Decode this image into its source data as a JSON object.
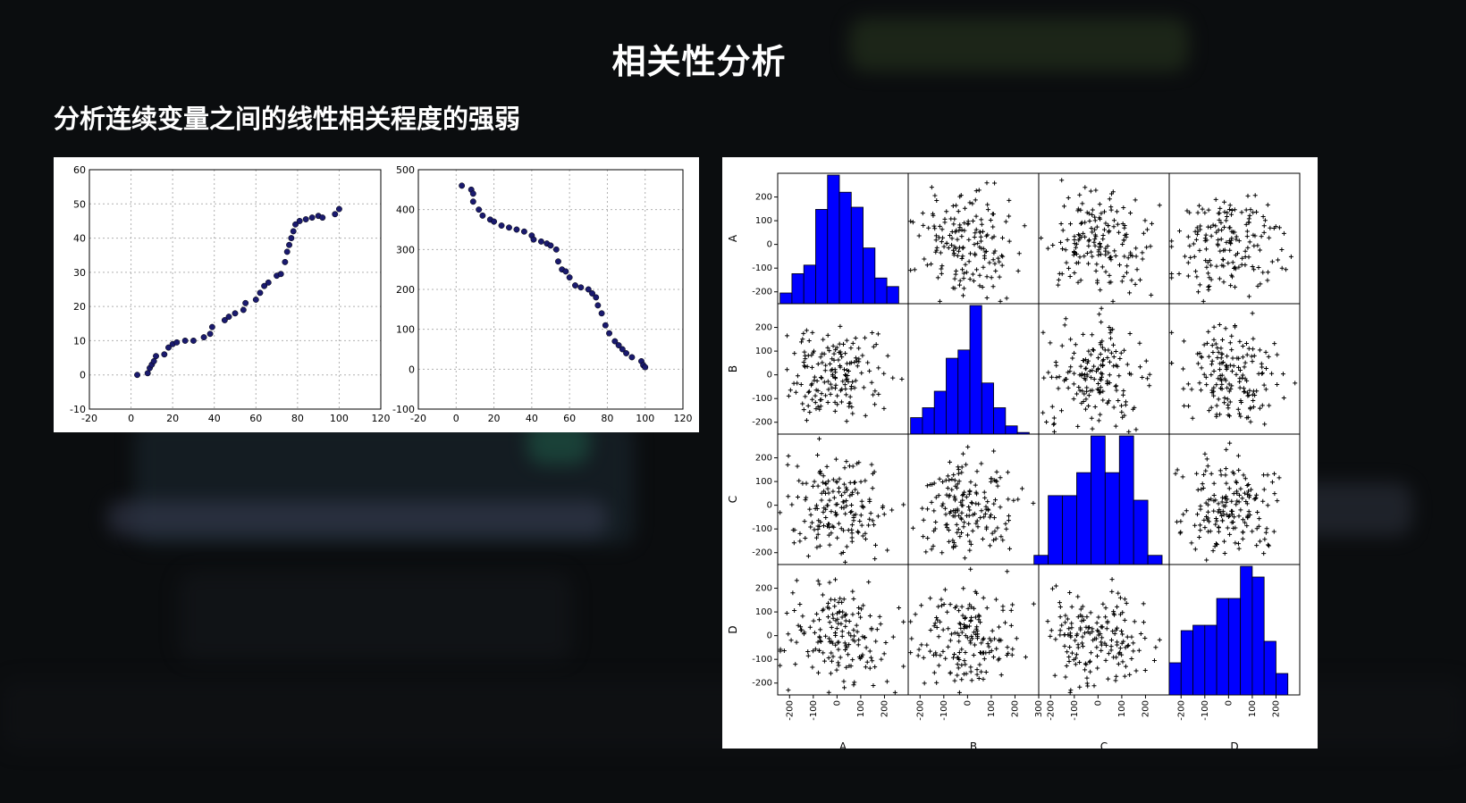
{
  "slide": {
    "title": "相关性分析",
    "subtitle": "分析连续变量之间的线性相关程度的强弱"
  },
  "colors": {
    "point": "#1a1a6e",
    "hist": "#0000ff",
    "grid": "#b0b0b0"
  },
  "chart_data": [
    {
      "type": "scatter",
      "title": "",
      "xlim": [
        -20,
        120
      ],
      "ylim": [
        -10,
        60
      ],
      "xticks": [
        -20,
        0,
        20,
        40,
        60,
        80,
        100,
        120
      ],
      "yticks": [
        -10,
        0,
        10,
        20,
        30,
        40,
        50,
        60
      ],
      "grid": true,
      "points": [
        [
          3,
          0
        ],
        [
          8,
          0.5
        ],
        [
          9,
          2
        ],
        [
          10,
          3
        ],
        [
          11,
          4
        ],
        [
          12,
          5.5
        ],
        [
          16,
          6
        ],
        [
          18,
          8
        ],
        [
          20,
          9
        ],
        [
          22,
          9.5
        ],
        [
          26,
          10
        ],
        [
          30,
          10
        ],
        [
          35,
          11
        ],
        [
          38,
          12
        ],
        [
          39,
          14
        ],
        [
          45,
          16
        ],
        [
          47,
          17
        ],
        [
          50,
          18
        ],
        [
          54,
          19
        ],
        [
          55,
          21
        ],
        [
          60,
          22
        ],
        [
          62,
          24
        ],
        [
          64,
          26
        ],
        [
          66,
          27
        ],
        [
          70,
          29
        ],
        [
          72,
          29.5
        ],
        [
          74,
          33
        ],
        [
          75,
          36
        ],
        [
          76,
          38
        ],
        [
          77,
          40
        ],
        [
          78,
          42
        ],
        [
          79,
          44
        ],
        [
          81,
          45
        ],
        [
          84,
          45.5
        ],
        [
          87,
          46
        ],
        [
          90,
          46.5
        ],
        [
          92,
          46
        ],
        [
          98,
          47
        ],
        [
          100,
          48.5
        ]
      ]
    },
    {
      "type": "scatter",
      "title": "",
      "xlim": [
        -20,
        120
      ],
      "ylim": [
        -100,
        500
      ],
      "xticks": [
        -20,
        0,
        20,
        40,
        60,
        80,
        100,
        120
      ],
      "yticks": [
        -100,
        0,
        100,
        200,
        300,
        400,
        500
      ],
      "grid": true,
      "points": [
        [
          3,
          460
        ],
        [
          8,
          450
        ],
        [
          9,
          440
        ],
        [
          9,
          420
        ],
        [
          12,
          400
        ],
        [
          14,
          385
        ],
        [
          18,
          375
        ],
        [
          20,
          370
        ],
        [
          24,
          360
        ],
        [
          28,
          355
        ],
        [
          32,
          350
        ],
        [
          36,
          345
        ],
        [
          40,
          335
        ],
        [
          41,
          325
        ],
        [
          45,
          320
        ],
        [
          48,
          315
        ],
        [
          50,
          310
        ],
        [
          53,
          300
        ],
        [
          54,
          270
        ],
        [
          56,
          250
        ],
        [
          58,
          245
        ],
        [
          60,
          230
        ],
        [
          63,
          210
        ],
        [
          66,
          205
        ],
        [
          70,
          200
        ],
        [
          72,
          190
        ],
        [
          74,
          180
        ],
        [
          75,
          160
        ],
        [
          77,
          140
        ],
        [
          79,
          110
        ],
        [
          81,
          90
        ],
        [
          84,
          70
        ],
        [
          86,
          60
        ],
        [
          88,
          50
        ],
        [
          90,
          40
        ],
        [
          93,
          30
        ],
        [
          98,
          20
        ],
        [
          99,
          10
        ],
        [
          100,
          5
        ]
      ]
    },
    {
      "type": "scatter_matrix",
      "variables": [
        "A",
        "B",
        "C",
        "D"
      ],
      "range": [
        -250,
        300
      ],
      "yticks": [
        -200,
        -100,
        0,
        100,
        200
      ],
      "xticks": [
        [
          -200,
          -100,
          0,
          100,
          200
        ],
        [
          -200,
          -100,
          0,
          100,
          200,
          300
        ],
        [
          -200,
          -100,
          0,
          100,
          200
        ],
        [
          -200,
          -100,
          0,
          100,
          200
        ]
      ],
      "histograms": {
        "A": {
          "edges": [
            -240,
            -190,
            -140,
            -90,
            -40,
            10,
            60,
            110,
            160,
            210,
            260
          ],
          "counts": [
            5,
            14,
            18,
            44,
            60,
            52,
            45,
            26,
            12,
            8
          ]
        },
        "B": {
          "edges": [
            -240,
            -190,
            -140,
            -90,
            -40,
            10,
            60,
            110,
            160,
            210,
            260
          ],
          "counts": [
            10,
            16,
            26,
            46,
            51,
            78,
            31,
            16,
            5,
            1
          ]
        },
        "C": {
          "edges": [
            -270,
            -210,
            -150,
            -90,
            -30,
            30,
            90,
            150,
            210,
            270
          ],
          "counts": [
            2,
            15,
            15,
            20,
            28,
            20,
            28,
            14,
            2
          ]
        },
        "D": {
          "edges": [
            -250,
            -200,
            -150,
            -100,
            -50,
            0,
            50,
            100,
            150,
            200,
            250
          ],
          "counts": [
            6,
            12,
            13,
            13,
            18,
            18,
            24,
            22,
            10,
            4
          ]
        }
      },
      "pair_note": "Off-diagonal cells are uncorrelated scatter clouds of ~200 points each, values roughly within -250 to 280"
    }
  ]
}
